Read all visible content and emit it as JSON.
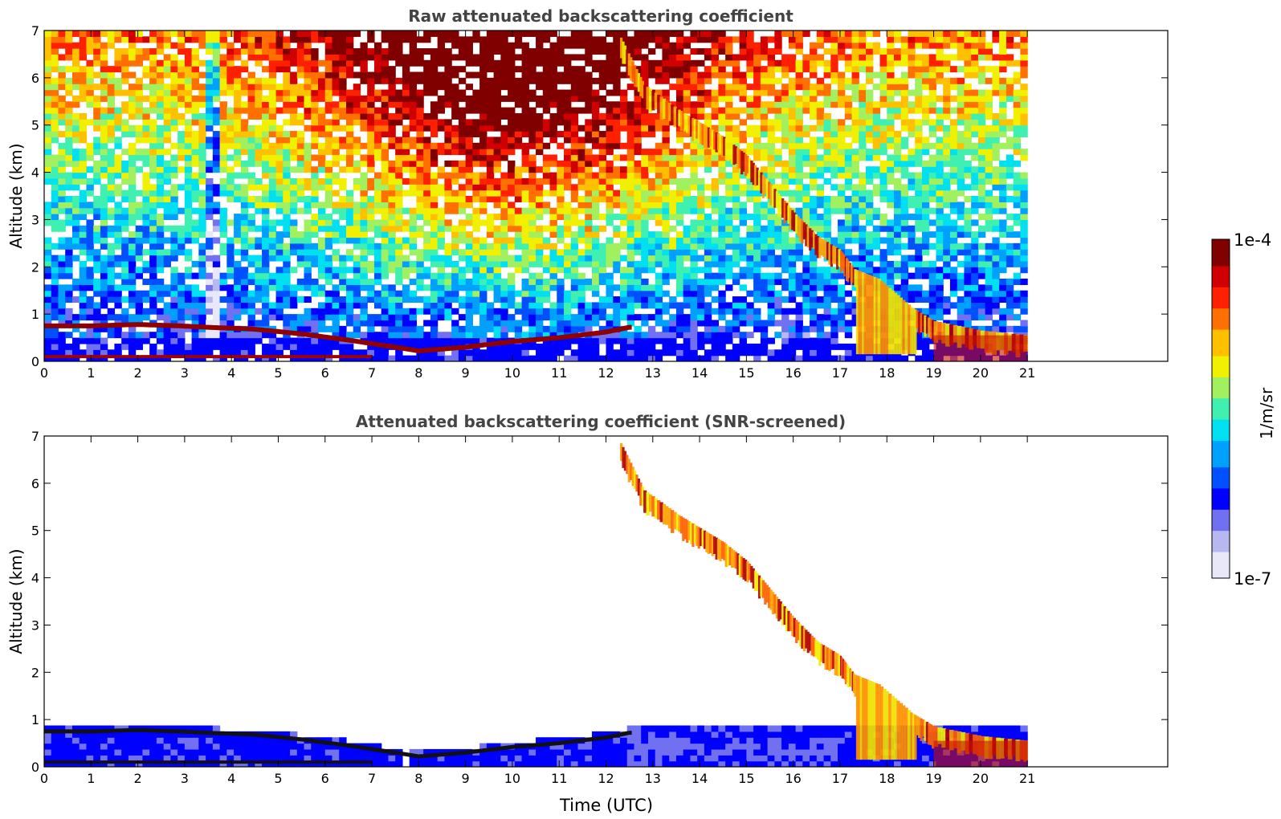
{
  "chart_data": [
    {
      "type": "heatmap",
      "title": "Raw attenuated backscattering coefficient",
      "xlabel": "",
      "ylabel": "Altitude (km)",
      "xlim": [
        0,
        24
      ],
      "ylim": [
        0,
        7
      ],
      "x_ticks": [
        0,
        1,
        2,
        3,
        4,
        5,
        6,
        7,
        8,
        9,
        10,
        11,
        12,
        13,
        14,
        15,
        16,
        17,
        18,
        19,
        20,
        21
      ],
      "y_ticks": [
        0,
        1,
        2,
        3,
        4,
        5,
        6,
        7
      ],
      "data_end_time": 21,
      "grid": false,
      "features": {
        "boundary_layer_top_km": [
          [
            0,
            0.75
          ],
          [
            1,
            0.75
          ],
          [
            2,
            0.78
          ],
          [
            2.9,
            0.75
          ],
          [
            3.5,
            0.72
          ],
          [
            4.5,
            0.68
          ],
          [
            5.5,
            0.58
          ],
          [
            6.5,
            0.45
          ],
          [
            7.5,
            0.3
          ],
          [
            8,
            0.22
          ],
          [
            9,
            0.3
          ],
          [
            10,
            0.42
          ],
          [
            11,
            0.5
          ],
          [
            12,
            0.62
          ],
          [
            12.5,
            0.72
          ]
        ],
        "descending_layer_km": [
          [
            12.3,
            6.7
          ],
          [
            12.8,
            5.7
          ],
          [
            13.5,
            5.2
          ],
          [
            14,
            4.9
          ],
          [
            14.5,
            4.6
          ],
          [
            15,
            4.2
          ],
          [
            15.5,
            3.6
          ],
          [
            16,
            3.0
          ],
          [
            16.5,
            2.5
          ],
          [
            17,
            2.2
          ],
          [
            17.3,
            1.8
          ],
          [
            17.8,
            1.6
          ],
          [
            18.5,
            1.0
          ],
          [
            19,
            0.7
          ],
          [
            20,
            0.5
          ],
          [
            21,
            0.4
          ]
        ]
      }
    },
    {
      "type": "heatmap",
      "title": "Attenuated backscattering coefficient (SNR-screened)",
      "xlabel": "Time (UTC)",
      "ylabel": "Altitude (km)",
      "xlim": [
        0,
        24
      ],
      "ylim": [
        0,
        7
      ],
      "x_ticks": [
        0,
        1,
        2,
        3,
        4,
        5,
        6,
        7,
        8,
        9,
        10,
        11,
        12,
        13,
        14,
        15,
        16,
        17,
        18,
        19,
        20,
        21
      ],
      "y_ticks": [
        0,
        1,
        2,
        3,
        4,
        5,
        6,
        7
      ],
      "data_end_time": 21,
      "grid": false
    }
  ],
  "colorbar": {
    "label": "1/m/sr",
    "max_label": "1e-4",
    "min_label": "1e-7",
    "scale": "log",
    "range": [
      1e-07,
      0.0001
    ],
    "colormap": [
      "#e8e8f8",
      "#b8b8f0",
      "#7070f0",
      "#0000ff",
      "#0050ff",
      "#00a0ff",
      "#00e0f0",
      "#40f0b0",
      "#a0f060",
      "#f0f000",
      "#ffc000",
      "#ff7000",
      "#ff2000",
      "#d00000",
      "#800000"
    ]
  }
}
